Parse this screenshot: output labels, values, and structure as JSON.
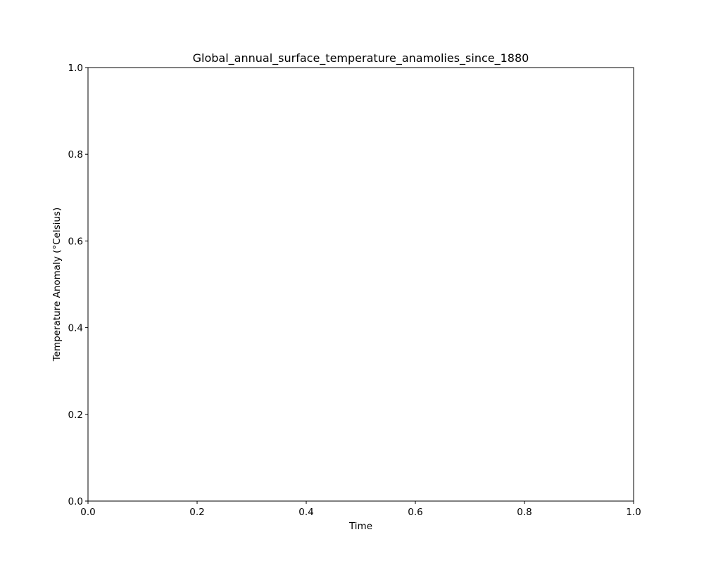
{
  "chart_data": {
    "type": "line",
    "title": "Global_annual_surface_temperature_anamolies_since_1880",
    "xlabel": "Time",
    "ylabel": "Temperature Anomaly (°Celsius)",
    "xlim": [
      0,
      1
    ],
    "ylim": [
      0,
      1
    ],
    "xticks": [
      0.0,
      0.2,
      0.4,
      0.6,
      0.8,
      1.0
    ],
    "xtick_labels": [
      "0.0",
      "0.2",
      "0.4",
      "0.6",
      "0.8",
      "1.0"
    ],
    "yticks": [
      0.0,
      0.2,
      0.4,
      0.6,
      0.8,
      1.0
    ],
    "ytick_labels": [
      "0.0",
      "0.2",
      "0.4",
      "0.6",
      "0.8",
      "1.0"
    ],
    "grid": false,
    "series": []
  }
}
